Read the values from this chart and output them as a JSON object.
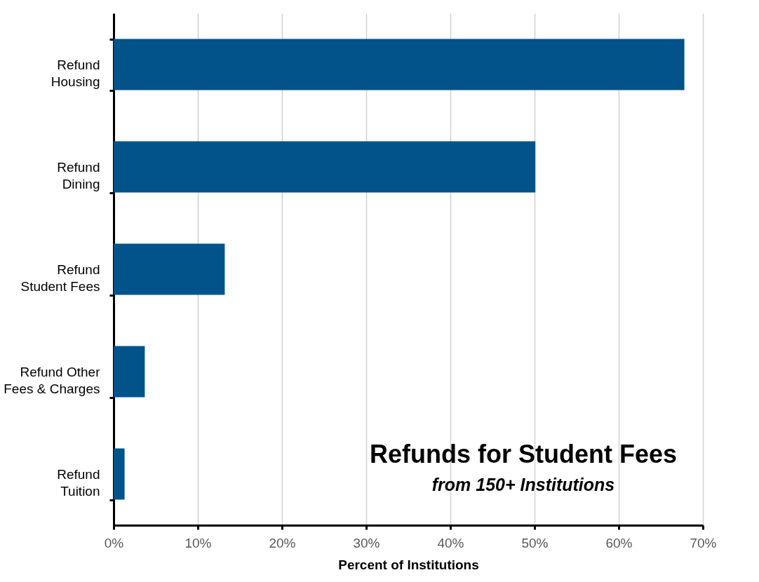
{
  "chart_data": {
    "type": "bar",
    "orientation": "horizontal",
    "title": "Refunds for Student Fees",
    "subtitle": "from 150+ Institutions",
    "xlabel": "Percent of Institutions",
    "categories": [
      "Refund\nHousing",
      "Refund\nDining",
      "Refund\nStudent Fees",
      "Refund Other\nFees & Charges",
      "Refund\nTuition"
    ],
    "values": [
      67.8,
      50.1,
      13.2,
      3.7,
      1.3
    ],
    "color": "#02538a",
    "xlim": [
      0,
      70
    ],
    "xticks": [
      {
        "value": 0,
        "label": "0%"
      },
      {
        "value": 10,
        "label": "10%"
      },
      {
        "value": 20,
        "label": "20%"
      },
      {
        "value": 30,
        "label": "30%"
      },
      {
        "value": 40,
        "label": "40%"
      },
      {
        "value": 50,
        "label": "50%"
      },
      {
        "value": 60,
        "label": "60%"
      },
      {
        "value": 70,
        "label": "70%"
      }
    ],
    "grid": "x"
  }
}
